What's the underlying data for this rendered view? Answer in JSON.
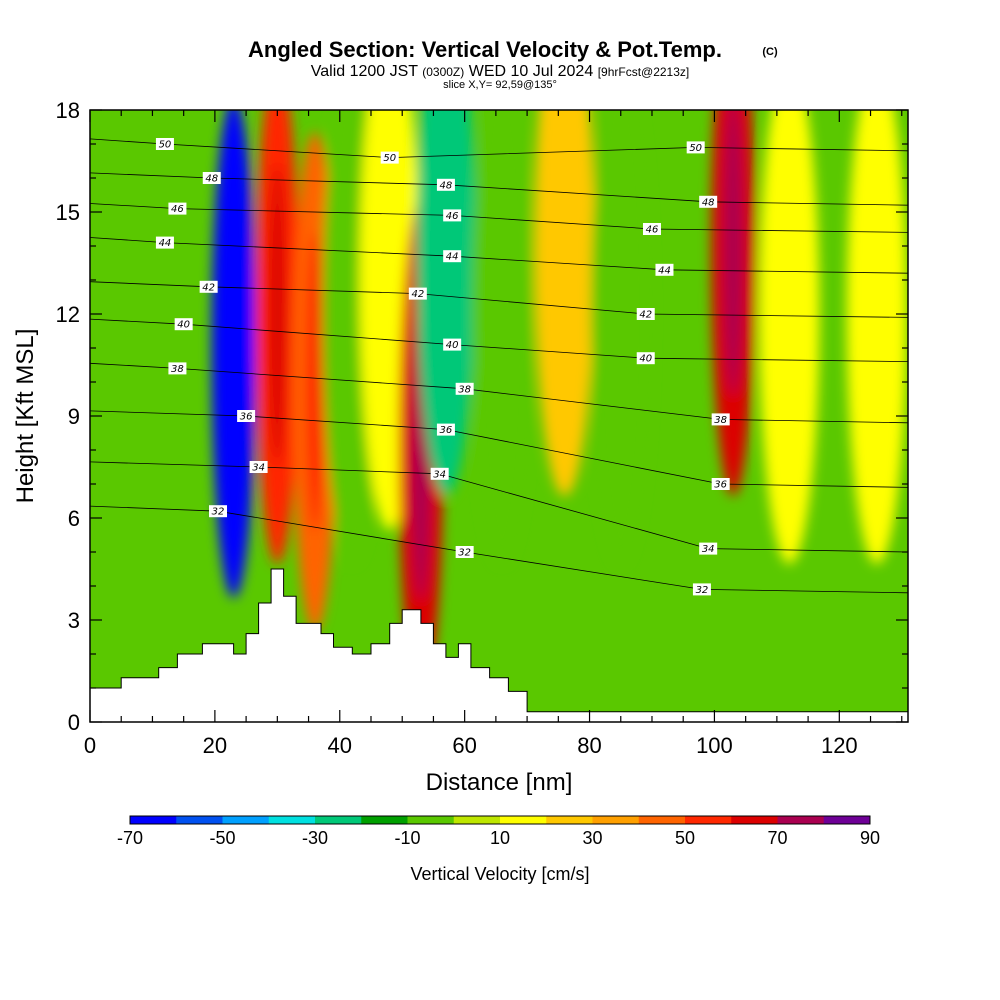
{
  "chart_data": {
    "type": "heatmap",
    "title": "Angled Section: Vertical Velocity & Pot.Temp.",
    "title_suffix": "(C)",
    "subtitle": {
      "prefix": "Valid 1200 JST",
      "utc": "(0300Z)",
      "date": "WED 10 Jul 2024",
      "forecast": "[9hrFcst@2213z]"
    },
    "slice_info": "slice X,Y= 92,59@135°",
    "xlabel": "Distance [nm]",
    "ylabel": "Height [Kft MSL]",
    "xlim": [
      0,
      131
    ],
    "ylim": [
      0,
      18
    ],
    "x_ticks": [
      "0",
      "20",
      "40",
      "60",
      "80",
      "100",
      "120"
    ],
    "y_ticks": [
      "0",
      "3",
      "6",
      "9",
      "12",
      "15",
      "18"
    ],
    "colorbar": {
      "title": "Vertical Velocity [cm/s]",
      "tick_labels": [
        "-70",
        "-50",
        "-30",
        "-10",
        "10",
        "30",
        "50",
        "70",
        "90"
      ],
      "bounds": [
        -70,
        90
      ],
      "step": 10,
      "colors": [
        "#0000ff",
        "#0050f0",
        "#00a0ff",
        "#00e0e0",
        "#00c878",
        "#00a000",
        "#5ac800",
        "#bee600",
        "#ffff00",
        "#ffc800",
        "#ffa000",
        "#ff6400",
        "#ff2800",
        "#dc0000",
        "#aa0050",
        "#6e0096"
      ]
    },
    "series": [
      {
        "name": "vertical velocity",
        "values": [
          {
            "x": 23,
            "y": 11,
            "value": -65
          },
          {
            "x": 30,
            "y": 12,
            "value": 50
          },
          {
            "x": 36,
            "y": 10,
            "value": 40
          },
          {
            "x": 42,
            "y": 12,
            "value": -10
          },
          {
            "x": 48,
            "y": 13,
            "value": 15
          },
          {
            "x": 53,
            "y": 8,
            "value": 65
          },
          {
            "x": 57,
            "y": 14,
            "value": -30
          },
          {
            "x": 66,
            "y": 12,
            "value": -5
          },
          {
            "x": 76,
            "y": 14,
            "value": 25
          },
          {
            "x": 85,
            "y": 12,
            "value": -10
          },
          {
            "x": 103,
            "y": 14,
            "value": 65
          },
          {
            "x": 112,
            "y": 12,
            "value": 15
          },
          {
            "x": 126,
            "y": 12,
            "value": 15
          }
        ]
      },
      {
        "name": "potential temperature",
        "values": [
          {
            "x": 12,
            "y": 17,
            "label": "50"
          },
          {
            "x": 48,
            "y": 16.6,
            "label": "50"
          },
          {
            "x": 97,
            "y": 16.9,
            "label": "50"
          },
          {
            "x": 19.5,
            "y": 16,
            "label": "48"
          },
          {
            "x": 57,
            "y": 15.8,
            "label": "48"
          },
          {
            "x": 99,
            "y": 15.3,
            "label": "48"
          },
          {
            "x": 14,
            "y": 15.1,
            "label": "46"
          },
          {
            "x": 58,
            "y": 14.9,
            "label": "46"
          },
          {
            "x": 90,
            "y": 14.5,
            "label": "46"
          },
          {
            "x": 12,
            "y": 14.1,
            "label": "44"
          },
          {
            "x": 58,
            "y": 13.7,
            "label": "44"
          },
          {
            "x": 92,
            "y": 13.3,
            "label": "44"
          },
          {
            "x": 19,
            "y": 12.8,
            "label": "42"
          },
          {
            "x": 52.5,
            "y": 12.6,
            "label": "42"
          },
          {
            "x": 89,
            "y": 12,
            "label": "42"
          },
          {
            "x": 15,
            "y": 11.7,
            "label": "40"
          },
          {
            "x": 58,
            "y": 11.1,
            "label": "40"
          },
          {
            "x": 89,
            "y": 10.7,
            "label": "40"
          },
          {
            "x": 14,
            "y": 10.4,
            "label": "38"
          },
          {
            "x": 60,
            "y": 9.8,
            "label": "38"
          },
          {
            "x": 101,
            "y": 8.9,
            "label": "38"
          },
          {
            "x": 25,
            "y": 9,
            "label": "36"
          },
          {
            "x": 57,
            "y": 8.6,
            "label": "36"
          },
          {
            "x": 101,
            "y": 7,
            "label": "36"
          },
          {
            "x": 27,
            "y": 7.5,
            "label": "34"
          },
          {
            "x": 56,
            "y": 7.3,
            "label": "34"
          },
          {
            "x": 99,
            "y": 5.1,
            "label": "34"
          },
          {
            "x": 20.5,
            "y": 6.2,
            "label": "32"
          },
          {
            "x": 60,
            "y": 5,
            "label": "32"
          },
          {
            "x": 98,
            "y": 3.9,
            "label": "32"
          }
        ]
      }
    ]
  }
}
